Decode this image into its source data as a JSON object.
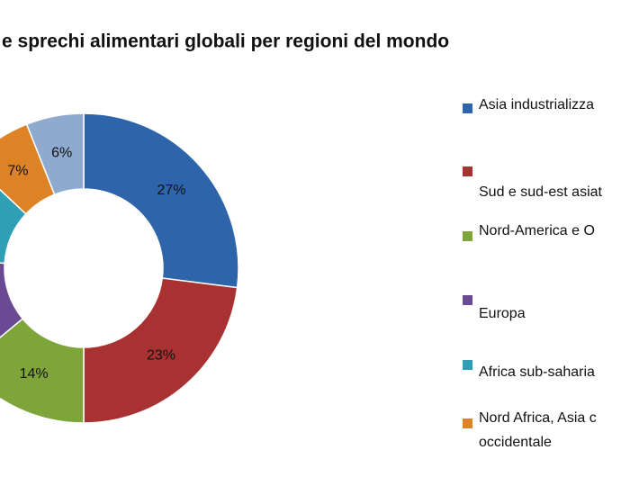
{
  "chart_data": {
    "type": "donut",
    "title": "e sprechi alimentari globali per regioni del mondo",
    "categories": [
      "Asia industrializza",
      "Sud e sud-est  asiat",
      "Nord-America  e O",
      "Europa",
      "Africa sub-saharia",
      "Nord Africa, Asia c occidentale",
      null
    ],
    "values": [
      27,
      23,
      14,
      12,
      11,
      7,
      6
    ],
    "value_labels": [
      "27%",
      "23%",
      "14%",
      null,
      null,
      "7%",
      "6%"
    ],
    "colors": [
      "#2e64aa",
      "#a83232",
      "#7ea53a",
      "#6a4a93",
      "#2e9fb5",
      "#de8325",
      "#8eaacf"
    ]
  }
}
